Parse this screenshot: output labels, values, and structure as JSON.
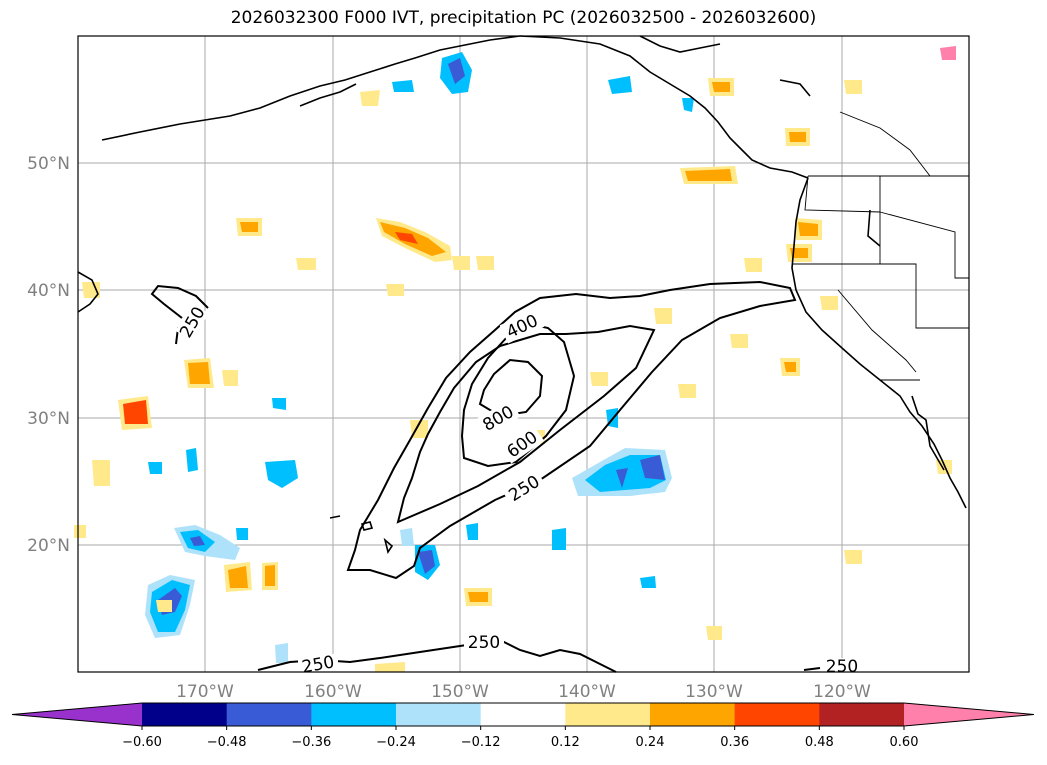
{
  "title": "2026032300 F000 IVT, precipitation PC (2026032500 - 2026032600)",
  "chart_data": {
    "type": "map-contour",
    "title": "2026032300 F000 IVT, precipitation PC (2026032500 - 2026032600)",
    "lon_range": [
      -180,
      -110
    ],
    "lat_range": [
      10,
      60
    ],
    "lon_ticks": [
      "170°W",
      "160°W",
      "150°W",
      "140°W",
      "130°W",
      "120°W"
    ],
    "lat_ticks": [
      "20°N",
      "30°N",
      "40°N",
      "50°N"
    ],
    "ivt_contour_labels": [
      "250",
      "400",
      "600",
      "800",
      "250",
      "250",
      "250",
      "250"
    ],
    "colorbar": {
      "tick_labels": [
        "−0.60",
        "−0.48",
        "−0.36",
        "−0.24",
        "−0.12",
        "0.12",
        "0.24",
        "0.36",
        "0.48",
        "0.60"
      ],
      "colors": [
        "#9932cc",
        "#00008b",
        "#3a5bd6",
        "#00bfff",
        "#aee2fb",
        "#ffffff",
        "#ffe98a",
        "#ffa500",
        "#ff4500",
        "#b22222",
        "#ff80ab"
      ],
      "extend": "both"
    }
  }
}
